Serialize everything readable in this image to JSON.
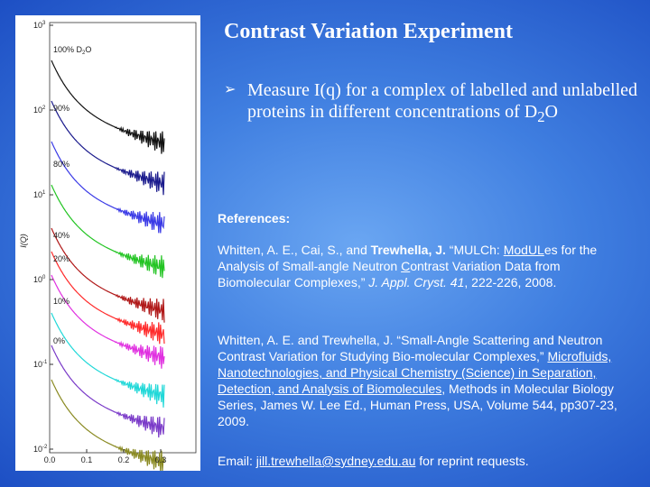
{
  "title": "Contrast Variation Experiment",
  "bullet": [
    "Measure I(q) for a complex of labelled and unlabelled proteins in different concentrations of D",
    "2",
    "O"
  ],
  "figure": {
    "y_axis_label": "I(Q)",
    "y_ticks": [
      {
        "base": "10",
        "exp": "3"
      },
      {
        "base": "10",
        "exp": "2"
      },
      {
        "base": "10",
        "exp": "1"
      },
      {
        "base": "10",
        "exp": "0"
      },
      {
        "base": "10",
        "exp": "-1"
      },
      {
        "base": "10",
        "exp": "-2"
      }
    ],
    "x_ticks": [
      "0.0",
      "0.1",
      "0.2",
      "0.3"
    ],
    "curve_labels": [
      "100% D",
      "2",
      "O",
      "90%",
      "80%",
      "40%",
      "20%",
      "10%",
      "0%"
    ]
  },
  "references": {
    "heading": "References:",
    "items": [
      [
        "Whitten, A. E., Cai, S., and ",
        "Trewhella, J.",
        " “MULCh: ",
        "ModUL",
        "es for the Analysis of Small-angle Neutron ",
        "C",
        "ontrast Variation Data from Biomolecular Complexes,” ",
        "J. Appl. Cryst. 41",
        ", 222-226, 2008."
      ],
      [
        "Whitten, A. E. and Trewhella, J. “Small-Angle Scattering and Neutron Contrast Variation for Studying Bio-molecular Complexes,” ",
        "Microfluids, Nanotechnologies, and Physical Chemistry (Science) in Separation, Detection, and Analysis of Biomolecules",
        ", Methods in Molecular Biology Series, James W. Lee Ed., Human Press, USA, Volume 544, pp307-23, 2009."
      ]
    ]
  },
  "email": [
    "Email:  ",
    "jill.trewhella@sydney.edu.au",
    " for reprint requests."
  ]
}
